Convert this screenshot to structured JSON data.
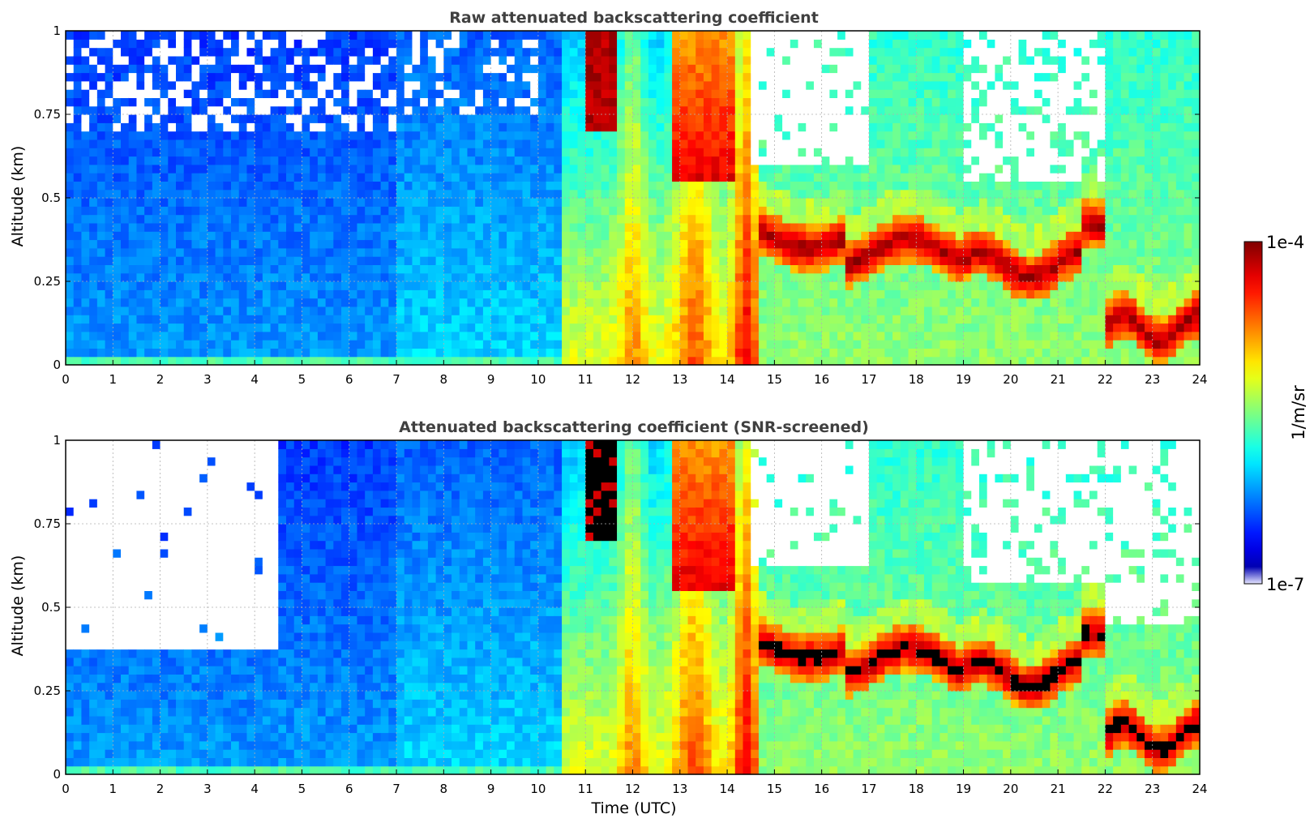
{
  "colors": {
    "jet": [
      "#00007f",
      "#0000ff",
      "#007fff",
      "#00ffff",
      "#7fff7f",
      "#ffff00",
      "#ff7f00",
      "#ff0000",
      "#7f0000"
    ],
    "saturated_screened": "#000000",
    "missing": "#ffffff",
    "title_text": "#404040"
  },
  "chart_data": [
    {
      "type": "heatmap",
      "title": "Raw attenuated backscattering coefficient",
      "xlabel": "",
      "ylabel": "Altitude (km)",
      "xlim": [
        0,
        24
      ],
      "ylim": [
        0,
        1
      ],
      "xticks": [
        "0",
        "1",
        "2",
        "3",
        "4",
        "5",
        "6",
        "7",
        "8",
        "9",
        "10",
        "11",
        "12",
        "13",
        "14",
        "15",
        "16",
        "17",
        "18",
        "19",
        "20",
        "21",
        "22",
        "23",
        "24"
      ],
      "yticks": [
        "0",
        "0.25",
        "0.5",
        "0.75",
        "1"
      ],
      "grid": true
    },
    {
      "type": "heatmap",
      "title": "Attenuated backscattering coefficient (SNR-screened)",
      "xlabel": "Time (UTC)",
      "ylabel": "Altitude (km)",
      "xlim": [
        0,
        24
      ],
      "ylim": [
        0,
        1
      ],
      "xticks": [
        "0",
        "1",
        "2",
        "3",
        "4",
        "5",
        "6",
        "7",
        "8",
        "9",
        "10",
        "11",
        "12",
        "13",
        "14",
        "15",
        "16",
        "17",
        "18",
        "19",
        "20",
        "21",
        "22",
        "23",
        "24"
      ],
      "yticks": [
        "0",
        "0.25",
        "0.5",
        "0.75",
        "1"
      ],
      "grid": true
    }
  ],
  "colorbar": {
    "label": "1/m/sr",
    "max_label": "1e-4",
    "min_label": "1e-7",
    "scale": "log",
    "range": [
      1e-07,
      0.0001
    ]
  }
}
